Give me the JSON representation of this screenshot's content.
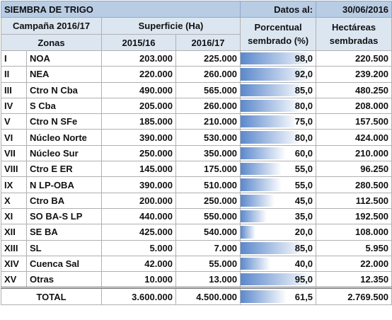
{
  "header": {
    "title": "SIEMBRA DE TRIGO",
    "date_label": "Datos al:",
    "date": "30/06/2016"
  },
  "table": {
    "header_row1": [
      "Campaña 2016/17",
      "Superficie (Ha)",
      "Porcentual sembrado (%)",
      "Hectáreas sembradas"
    ],
    "header_row2": [
      "Zonas",
      "2015/16",
      "2016/17"
    ],
    "rows": [
      [
        "I",
        "NOA",
        "203.000",
        "225.000",
        "98,0",
        "220.500"
      ],
      [
        "II",
        "NEA",
        "220.000",
        "260.000",
        "92,0",
        "239.200"
      ],
      [
        "III",
        "Ctro N Cba",
        "490.000",
        "565.000",
        "85,0",
        "480.250"
      ],
      [
        "IV",
        "S Cba",
        "205.000",
        "260.000",
        "80,0",
        "208.000"
      ],
      [
        "V",
        "Ctro N SFe",
        "185.000",
        "210.000",
        "75,0",
        "157.500"
      ],
      [
        "VI",
        "Núcleo Norte",
        "390.000",
        "530.000",
        "80,0",
        "424.000"
      ],
      [
        "VII",
        "Núcleo Sur",
        "250.000",
        "350.000",
        "60,0",
        "210.000"
      ],
      [
        "VIII",
        "Ctro E ER",
        "145.000",
        "175.000",
        "55,0",
        "96.250"
      ],
      [
        "IX",
        "N LP-OBA",
        "390.000",
        "510.000",
        "55,0",
        "280.500"
      ],
      [
        "X",
        "Ctro BA",
        "200.000",
        "250.000",
        "45,0",
        "112.500"
      ],
      [
        "XI",
        "SO BA-S LP",
        "440.000",
        "550.000",
        "35,0",
        "192.500"
      ],
      [
        "XII",
        "SE BA",
        "425.000",
        "540.000",
        "20,0",
        "108.000"
      ],
      [
        "XIII",
        "SL",
        "5.000",
        "7.000",
        "85,0",
        "5.950"
      ],
      [
        "XIV",
        "Cuenca Sal",
        "42.000",
        "55.000",
        "40,0",
        "22.000"
      ],
      [
        "XV",
        "Otras",
        "10.000",
        "13.000",
        "95,0",
        "12.350"
      ]
    ],
    "total": [
      "TOTAL",
      "3.600.000",
      "4.500.000",
      "61,5",
      "2.769.500"
    ]
  }
}
